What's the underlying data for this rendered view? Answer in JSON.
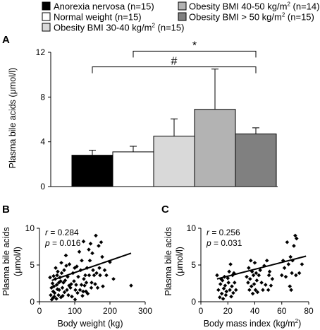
{
  "figure": {
    "panel_labels": [
      "A",
      "B",
      "C"
    ]
  },
  "chart_data": [
    {
      "panel": "A",
      "type": "bar",
      "title": "",
      "ylabel": "Plasma bile acids (μmol/l)",
      "xlabel": "",
      "ylim": [
        0,
        12
      ],
      "yticks": [
        0,
        4,
        8,
        12
      ],
      "grid": false,
      "legend_position": "top",
      "series": [
        {
          "name": "Anorexia nervosa (n=15)",
          "name_sup": "",
          "name_tail": "",
          "value": 2.8,
          "error": 0.45,
          "color": "#000000"
        },
        {
          "name": "Normal weight (n=15)",
          "name_sup": "",
          "name_tail": "",
          "value": 3.1,
          "error": 0.5,
          "color": "#ffffff"
        },
        {
          "name": "Obesity BMI 30-40 kg/m",
          "name_sup": "2",
          "name_tail": " (n=15)",
          "value": 4.5,
          "error": 1.55,
          "color": "#d9d9d9"
        },
        {
          "name": "Obesity BMI 40-50 kg/m",
          "name_sup": "2",
          "name_tail": " (n=14)",
          "value": 6.9,
          "error": 3.6,
          "color": "#b3b3b3"
        },
        {
          "name": "Obesity BMI > 50 kg/m",
          "name_sup": "2",
          "name_tail": " (n=15)",
          "value": 4.7,
          "error": 0.55,
          "color": "#808080"
        }
      ],
      "annotations": [
        {
          "symbol": "*",
          "from_bar": 2,
          "to_bar": 5,
          "level": 12.1
        },
        {
          "symbol": "#",
          "from_bar": 1,
          "to_bar": 5,
          "level": 10.7
        }
      ]
    },
    {
      "panel": "B",
      "type": "scatter",
      "xlabel": "Body weight (kg)",
      "ylabel": "Plasma bile acids",
      "ylabel_line2": "(μmol/l)",
      "xlim": [
        0,
        300
      ],
      "ylim": [
        0,
        10
      ],
      "xticks": [
        0,
        100,
        200,
        300
      ],
      "yticks": [
        0,
        5,
        10
      ],
      "stats": {
        "r_label": "r",
        "r_value": " = 0.284",
        "p_label": "p",
        "p_value": " = 0.016"
      },
      "trendline": {
        "x": [
          35,
          260
        ],
        "y": [
          2.9,
          6.6
        ]
      },
      "points": [
        [
          30,
          3.3
        ],
        [
          32,
          0.9
        ],
        [
          34,
          1.9
        ],
        [
          35,
          0.3
        ],
        [
          37,
          2.5
        ],
        [
          38,
          0.5
        ],
        [
          39,
          1.4
        ],
        [
          40,
          3.5
        ],
        [
          41,
          2.1
        ],
        [
          42,
          0.7
        ],
        [
          43,
          1.2
        ],
        [
          45,
          3.1
        ],
        [
          46,
          4.6
        ],
        [
          48,
          0.4
        ],
        [
          49,
          2.3
        ],
        [
          50,
          3.6
        ],
        [
          51,
          1.7
        ],
        [
          52,
          4.1
        ],
        [
          54,
          0.9
        ],
        [
          55,
          2.6
        ],
        [
          56,
          1.6
        ],
        [
          58,
          3.3
        ],
        [
          60,
          2.8
        ],
        [
          61,
          0.6
        ],
        [
          62,
          5.3
        ],
        [
          63,
          3.9
        ],
        [
          65,
          1.9
        ],
        [
          66,
          0.8
        ],
        [
          68,
          2.6
        ],
        [
          70,
          4.3
        ],
        [
          71,
          1.3
        ],
        [
          73,
          2.9
        ],
        [
          75,
          6.3
        ],
        [
          76,
          4.9
        ],
        [
          78,
          1.6
        ],
        [
          80,
          3.4
        ],
        [
          82,
          0.9
        ],
        [
          84,
          2.2
        ],
        [
          85,
          5.1
        ],
        [
          88,
          1.9
        ],
        [
          90,
          2.4
        ],
        [
          92,
          0.7
        ],
        [
          95,
          3.9
        ],
        [
          98,
          2.8
        ],
        [
          100,
          4.6
        ],
        [
          101,
          0.3
        ],
        [
          102,
          1.6
        ],
        [
          104,
          2.3
        ],
        [
          106,
          4.8
        ],
        [
          108,
          1.2
        ],
        [
          110,
          3.4
        ],
        [
          113,
          6.8
        ],
        [
          115,
          1.6
        ],
        [
          117,
          4.3
        ],
        [
          119,
          2.3
        ],
        [
          120,
          5.6
        ],
        [
          122,
          0.8
        ],
        [
          124,
          1.4
        ],
        [
          125,
          8.2
        ],
        [
          126,
          3.1
        ],
        [
          128,
          2.2
        ],
        [
          130,
          3.6
        ],
        [
          132,
          1.4
        ],
        [
          133,
          2.6
        ],
        [
          135,
          4.6
        ],
        [
          137,
          1.1
        ],
        [
          140,
          7.1
        ],
        [
          141,
          3.6
        ],
        [
          143,
          5.6
        ],
        [
          145,
          7.9
        ],
        [
          147,
          1.9
        ],
        [
          148,
          2.6
        ],
        [
          150,
          6.6
        ],
        [
          152,
          4.3
        ],
        [
          155,
          3.6
        ],
        [
          158,
          2.4
        ],
        [
          160,
          9.0
        ],
        [
          162,
          3.9
        ],
        [
          165,
          1.9
        ],
        [
          168,
          7.6
        ],
        [
          170,
          4.6
        ],
        [
          172,
          3.6
        ],
        [
          175,
          8.1
        ],
        [
          178,
          6.1
        ],
        [
          180,
          2.1
        ],
        [
          185,
          4.3
        ],
        [
          190,
          3.6
        ],
        [
          200,
          5.4
        ],
        [
          210,
          3.1
        ],
        [
          260,
          2.2
        ]
      ]
    },
    {
      "panel": "C",
      "type": "scatter",
      "xlabel": "Body mass index (kg/m",
      "xlabel_sup": "2",
      "xlabel_tail": ")",
      "ylabel": "Plasma bile acids",
      "ylabel_line2": "(μmol/l)",
      "xlim": [
        0,
        80
      ],
      "ylim": [
        0,
        10
      ],
      "xticks": [
        0,
        20,
        40,
        60,
        80
      ],
      "yticks": [
        0,
        5,
        10
      ],
      "stats": {
        "r_label": "r",
        "r_value": " = 0.256",
        "p_label": "p",
        "p_value": " = 0.031"
      },
      "trendline": {
        "x": [
          12,
          78
        ],
        "y": [
          3.1,
          6.2
        ]
      },
      "points": [
        [
          12,
          3.6
        ],
        [
          13,
          1.6
        ],
        [
          14,
          0.6
        ],
        [
          14.5,
          2.4
        ],
        [
          15,
          3.1
        ],
        [
          15.5,
          1.1
        ],
        [
          16,
          2.9
        ],
        [
          16.5,
          0.4
        ],
        [
          17,
          1.8
        ],
        [
          17.5,
          3.4
        ],
        [
          18,
          2.2
        ],
        [
          18.5,
          0.9
        ],
        [
          19,
          1.4
        ],
        [
          20,
          3.2
        ],
        [
          20.5,
          2.6
        ],
        [
          21,
          4.1
        ],
        [
          21.5,
          1.6
        ],
        [
          22,
          5.1
        ],
        [
          22.5,
          0.7
        ],
        [
          23,
          2.1
        ],
        [
          23.5,
          3.6
        ],
        [
          24,
          1.2
        ],
        [
          24.5,
          3.9
        ],
        [
          25,
          2.6
        ],
        [
          26,
          1.6
        ],
        [
          34,
          3.4
        ],
        [
          35,
          2.6
        ],
        [
          35.5,
          4.6
        ],
        [
          36,
          1.6
        ],
        [
          36.5,
          3.1
        ],
        [
          37,
          5.6
        ],
        [
          37.5,
          2.1
        ],
        [
          38,
          4.1
        ],
        [
          38.5,
          1.1
        ],
        [
          39,
          3.6
        ],
        [
          39.5,
          2.4
        ],
        [
          40,
          5.3
        ],
        [
          40.5,
          1.6
        ],
        [
          41,
          3.9
        ],
        [
          41.5,
          2.9
        ],
        [
          42,
          1.3
        ],
        [
          43,
          3.6
        ],
        [
          44,
          4.3
        ],
        [
          45,
          2.6
        ],
        [
          46,
          1.6
        ],
        [
          47,
          4.9
        ],
        [
          48,
          2.3
        ],
        [
          49,
          5.6
        ],
        [
          50,
          1.6
        ],
        [
          50.5,
          3.6
        ],
        [
          51,
          4.1
        ],
        [
          52,
          2.2
        ],
        [
          53,
          3.1
        ],
        [
          60,
          3.6
        ],
        [
          61,
          5.6
        ],
        [
          62,
          4.6
        ],
        [
          63,
          3.4
        ],
        [
          64,
          8.1
        ],
        [
          65,
          5.1
        ],
        [
          66,
          2.1
        ],
        [
          66.5,
          6.1
        ],
        [
          67,
          1.6
        ],
        [
          67.5,
          3.9
        ],
        [
          68,
          5.6
        ],
        [
          69,
          7.6
        ],
        [
          70,
          9.0
        ],
        [
          70.5,
          3.6
        ],
        [
          71,
          8.6
        ],
        [
          73,
          3.9
        ],
        [
          75,
          5.1
        ]
      ]
    }
  ]
}
